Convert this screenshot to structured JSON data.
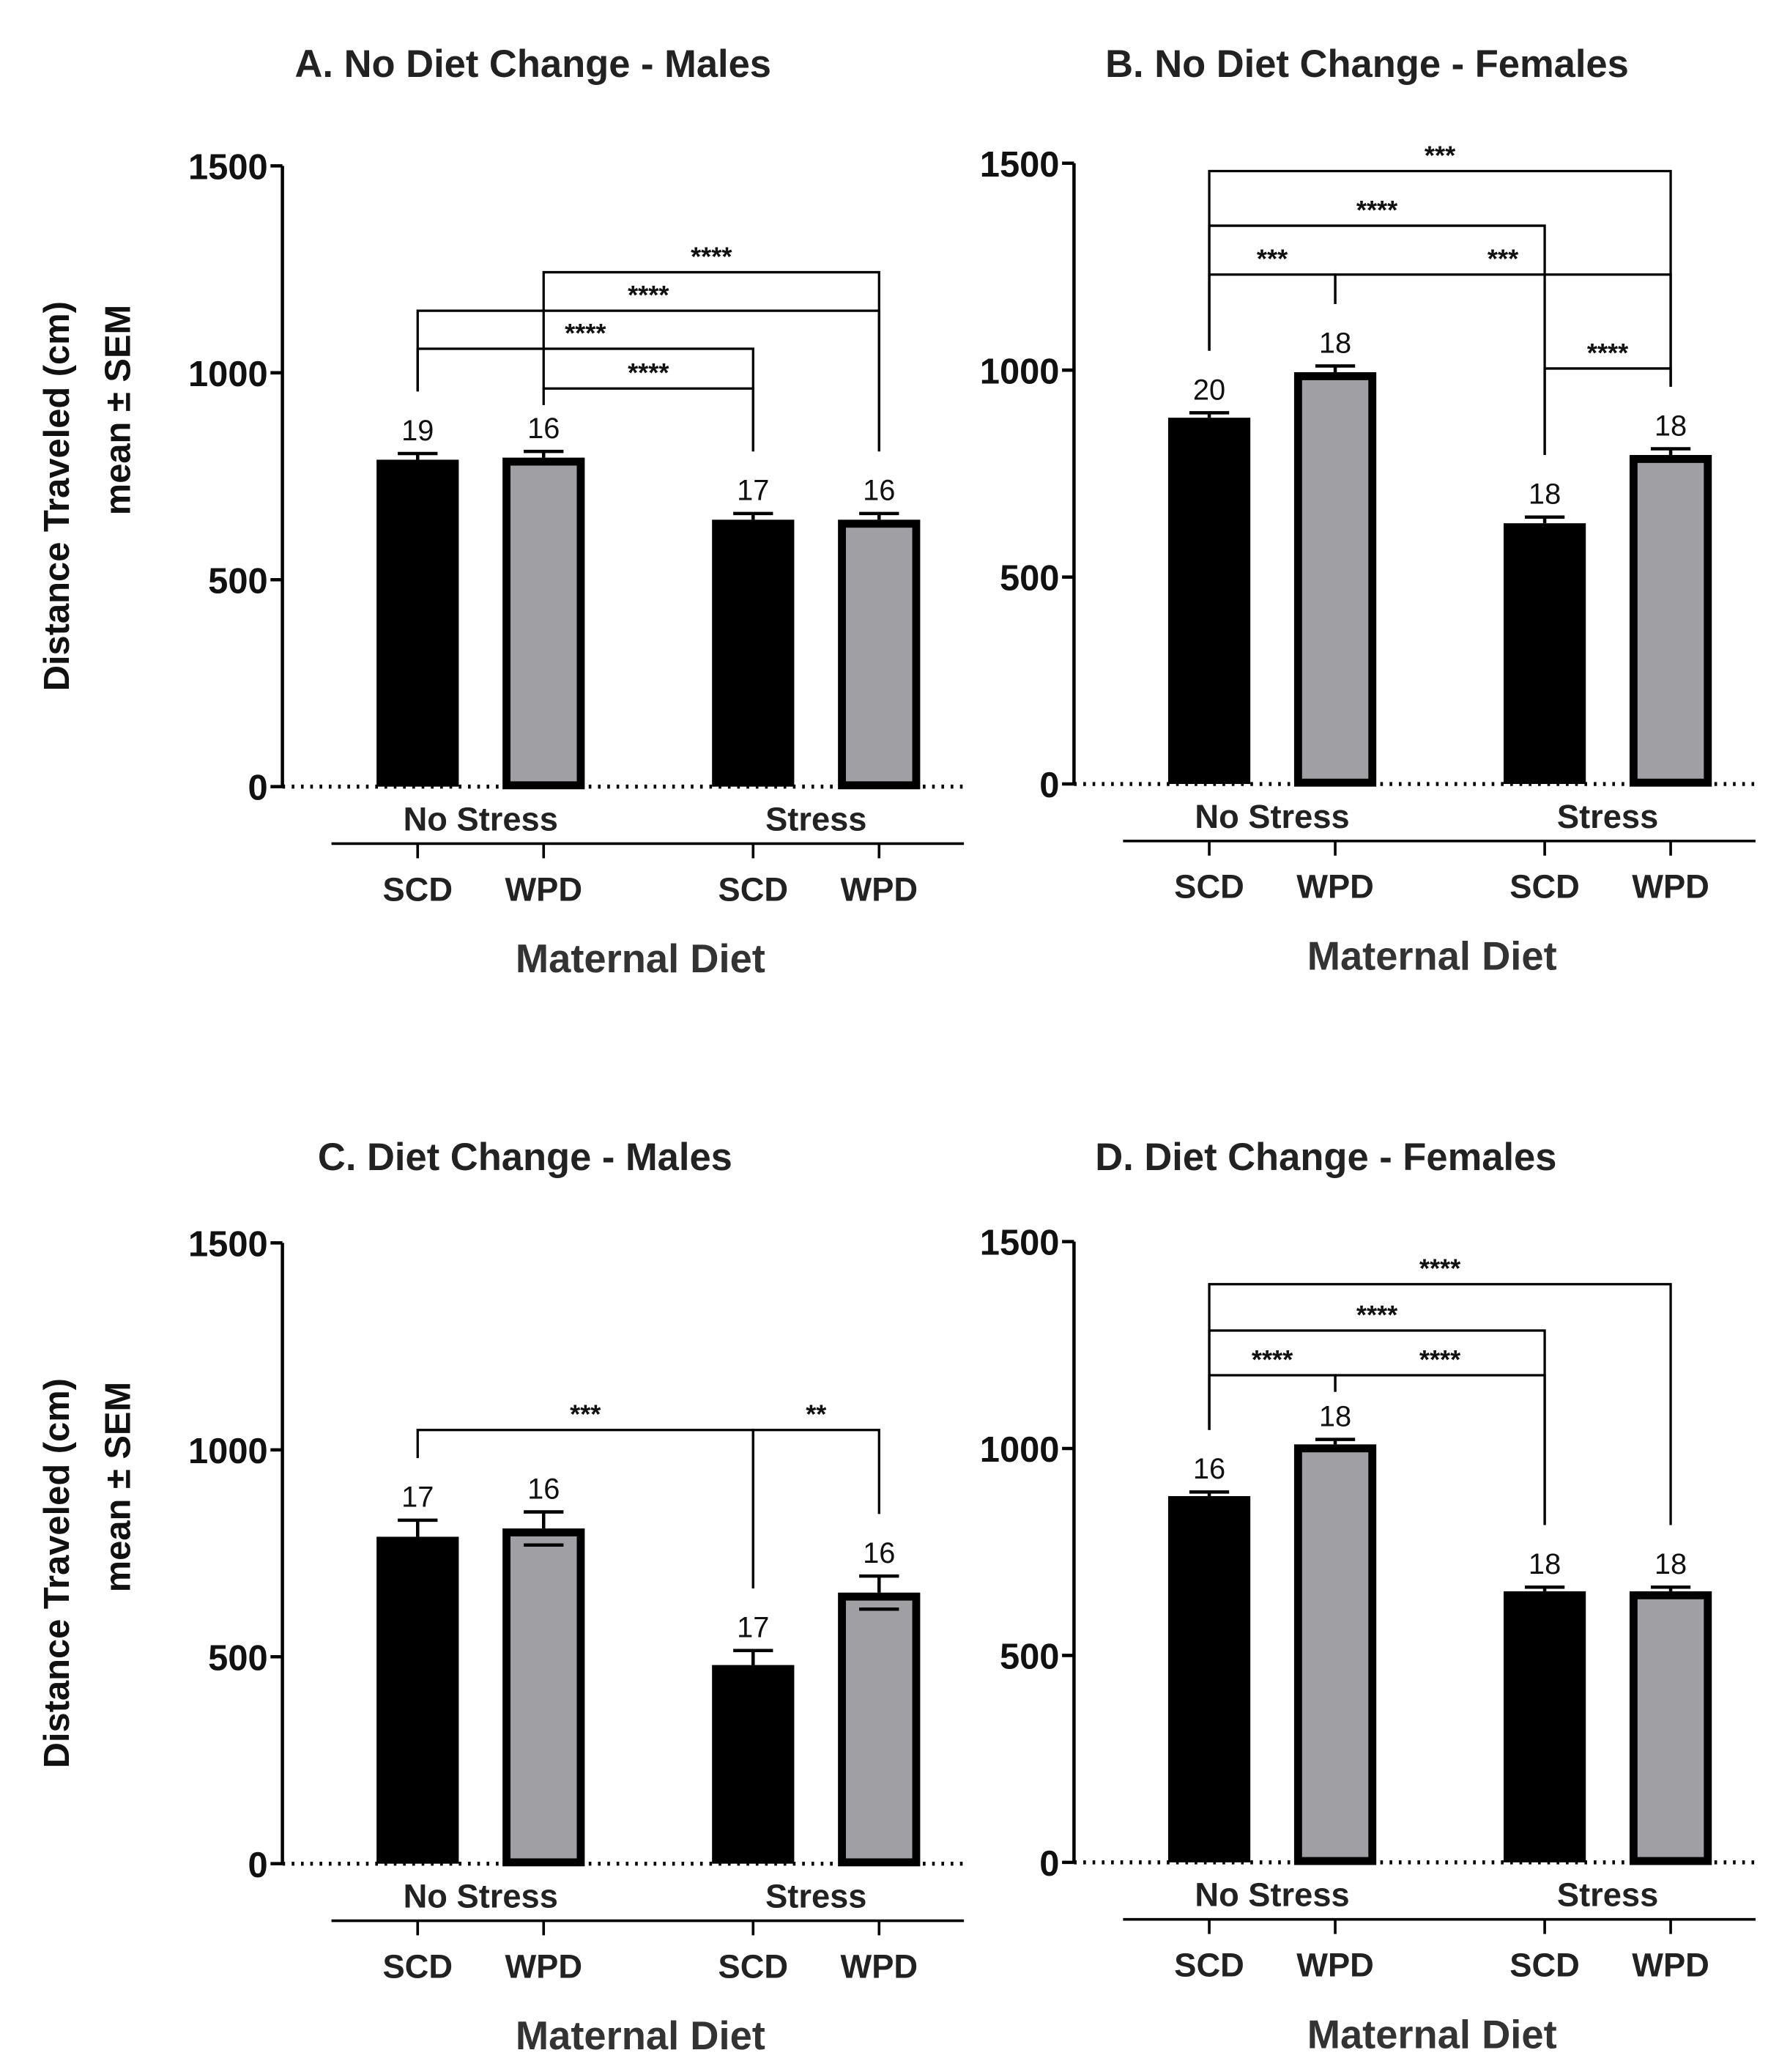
{
  "chart_data": [
    {
      "type": "bar",
      "title": "A.  No Diet Change - Males",
      "ylabel": [
        "Distance Traveled (cm)",
        "mean ± SEM"
      ],
      "xlabel": "Maternal Diet",
      "groups": [
        "No Stress",
        "Stress"
      ],
      "categories": [
        "SCD",
        "WPD",
        "SCD",
        "WPD"
      ],
      "values": [
        790,
        795,
        645,
        645
      ],
      "sem": [
        15,
        15,
        15,
        15
      ],
      "n": [
        "19",
        "16",
        "17",
        "16"
      ],
      "yticks": [
        "0",
        "500",
        "1000",
        "1500"
      ],
      "ylim": [
        0,
        1500
      ],
      "significance": [
        {
          "from": 1,
          "to": 3,
          "level": 1243,
          "label": "****"
        },
        {
          "from": 0,
          "to": 3,
          "level": 1150,
          "label": "****"
        },
        {
          "from": 0,
          "to": 2,
          "level": 1058,
          "label": "****"
        },
        {
          "from": 1,
          "to": 2,
          "level": 962,
          "label": "****"
        }
      ]
    },
    {
      "type": "bar",
      "title": "B.  No Diet Change - Females",
      "xlabel": "Maternal Diet",
      "groups": [
        "No Stress",
        "Stress"
      ],
      "categories": [
        "SCD",
        "WPD",
        "SCD",
        "WPD"
      ],
      "values": [
        885,
        995,
        630,
        795
      ],
      "sem": [
        12,
        15,
        15,
        15
      ],
      "n": [
        "20",
        "18",
        "18",
        "18"
      ],
      "yticks": [
        "0",
        "500",
        "1000",
        "1500"
      ],
      "ylim": [
        0,
        1500
      ],
      "significance": [
        {
          "from": 0,
          "to": 3,
          "level": 1481,
          "label": "***"
        },
        {
          "from": 0,
          "to": 2,
          "level": 1349,
          "label": "****"
        },
        {
          "from": 0,
          "to": 1,
          "level": 1231,
          "label": "***"
        },
        {
          "from": 1,
          "to": 3,
          "level": 1231,
          "label": "***"
        },
        {
          "from": 2,
          "to": 3,
          "level": 1004,
          "label": "****"
        }
      ]
    },
    {
      "type": "bar",
      "title": "C.  Diet Change - Males",
      "ylabel": [
        "Distance Traveled (cm)",
        "mean ± SEM"
      ],
      "xlabel": "Maternal Diet",
      "groups": [
        "No Stress",
        "Stress"
      ],
      "categories": [
        "SCD",
        "WPD",
        "SCD",
        "WPD"
      ],
      "values": [
        790,
        810,
        480,
        655
      ],
      "sem": [
        40,
        40,
        35,
        40
      ],
      "n": [
        "17",
        "16",
        "17",
        "16"
      ],
      "yticks": [
        "0",
        "500",
        "1000",
        "1500"
      ],
      "ylim": [
        0,
        1500
      ],
      "significance": [
        {
          "from": 0,
          "to": 2,
          "level": 1048,
          "label": "***"
        },
        {
          "from": 2,
          "to": 3,
          "level": 1048,
          "label": "**"
        }
      ]
    },
    {
      "type": "bar",
      "title": "D.  Diet Change - Females",
      "xlabel": "Maternal Diet",
      "groups": [
        "No Stress",
        "Stress"
      ],
      "categories": [
        "SCD",
        "WPD",
        "SCD",
        "WPD"
      ],
      "values": [
        885,
        1010,
        655,
        655
      ],
      "sem": [
        10,
        12,
        10,
        10
      ],
      "n": [
        "16",
        "18",
        "18",
        "18"
      ],
      "yticks": [
        "0",
        "500",
        "1000",
        "1500"
      ],
      "ylim": [
        0,
        1500
      ],
      "significance": [
        {
          "from": 0,
          "to": 3,
          "level": 1397,
          "label": "****"
        },
        {
          "from": 0,
          "to": 2,
          "level": 1285,
          "label": "****"
        },
        {
          "from": 0,
          "to": 1,
          "level": 1177,
          "label": "****"
        },
        {
          "from": 1,
          "to": 2,
          "level": 1177,
          "label": "****"
        }
      ]
    }
  ],
  "colors": {
    "scd": "#000000",
    "wpd": "#a0a0a4",
    "axis": "#000000"
  }
}
